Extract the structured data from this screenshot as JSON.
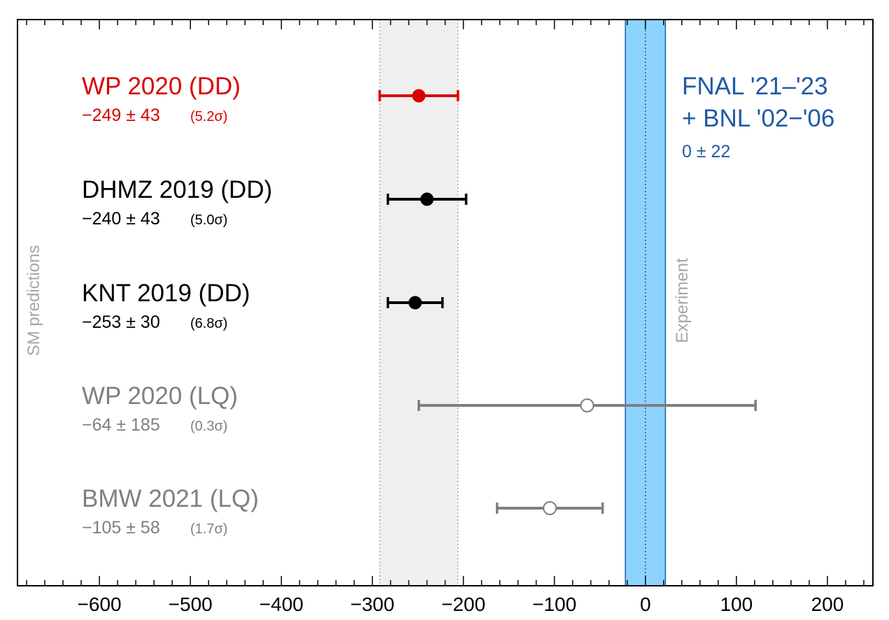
{
  "chart_data": {
    "type": "scatter",
    "title": "",
    "xlabel": "",
    "ylabel": "",
    "xlim": [
      -690,
      250
    ],
    "x_ticks": [
      -600,
      -500,
      -400,
      -300,
      -200,
      -100,
      0,
      100,
      200
    ],
    "x_tick_labels": [
      "−600",
      "−500",
      "−400",
      "−300",
      "−200",
      "−100",
      "0",
      "100",
      "200"
    ],
    "side_label": "SM predictions",
    "reference_band": {
      "center": -249,
      "error": 43
    },
    "experiment": {
      "label_line1": "FNAL '21–'23",
      "label_line2": "+ BNL '02−'06",
      "value_text": "0 ± 22",
      "band_label": "Experiment",
      "center": 0,
      "error": 22,
      "color": "#1f5aa6",
      "band_color": "#8dd3ff"
    },
    "series": [
      {
        "name": "WP 2020 (DD)",
        "value_text": "−249 ± 43",
        "sigma_text": "(5.2σ)",
        "value": -249,
        "error": 43,
        "color": "#d90000",
        "filled": true
      },
      {
        "name": "DHMZ 2019 (DD)",
        "value_text": "−240 ± 43",
        "sigma_text": "(5.0σ)",
        "value": -240,
        "error": 43,
        "color": "#000000",
        "filled": true
      },
      {
        "name": "KNT 2019 (DD)",
        "value_text": "−253 ± 30",
        "sigma_text": "(6.8σ)",
        "value": -253,
        "error": 30,
        "color": "#000000",
        "filled": true
      },
      {
        "name": "WP 2020 (LQ)",
        "value_text": "−64 ± 185",
        "sigma_text": "(0.3σ)",
        "value": -64,
        "error": 185,
        "color": "#7f7f7f",
        "filled": false
      },
      {
        "name": "BMW 2021 (LQ)",
        "value_text": "−105 ± 58",
        "sigma_text": "(1.7σ)",
        "value": -105,
        "error": 58,
        "color": "#7f7f7f",
        "filled": false
      }
    ]
  }
}
